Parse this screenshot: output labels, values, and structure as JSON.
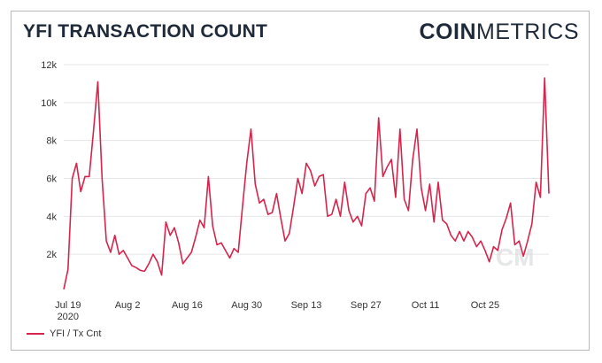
{
  "header": {
    "title": "YFI TRANSACTION COUNT",
    "brand_bold": "COIN",
    "brand_light": "METRICS"
  },
  "watermark": "CM",
  "colors": {
    "line": "#d6254d",
    "grid": "#e6e6e6",
    "text": "#1e2a3a"
  },
  "chart_data": {
    "type": "line",
    "title": "YFI TRANSACTION COUNT",
    "xlabel": "",
    "ylabel": "",
    "ylim": [
      0,
      12000
    ],
    "y_ticks": [
      "2k",
      "4k",
      "6k",
      "8k",
      "10k",
      "12k"
    ],
    "y_tick_values": [
      2000,
      4000,
      6000,
      8000,
      10000,
      12000
    ],
    "x_ticks": [
      {
        "day": 1,
        "label": "Jul 19",
        "sub": "2020"
      },
      {
        "day": 15,
        "label": "Aug 2",
        "sub": ""
      },
      {
        "day": 29,
        "label": "Aug 16",
        "sub": ""
      },
      {
        "day": 43,
        "label": "Aug 30",
        "sub": ""
      },
      {
        "day": 57,
        "label": "Sep 13",
        "sub": ""
      },
      {
        "day": 71,
        "label": "Sep 27",
        "sub": ""
      },
      {
        "day": 85,
        "label": "Oct 11",
        "sub": ""
      },
      {
        "day": 99,
        "label": "Oct 25",
        "sub": ""
      }
    ],
    "x_domain": [
      0,
      114
    ],
    "series": [
      {
        "name": "YFI / Tx Cnt",
        "days": [
          0,
          1,
          2,
          3,
          4,
          5,
          6,
          7,
          8,
          9,
          10,
          11,
          12,
          13,
          14,
          15,
          16,
          17,
          18,
          19,
          20,
          21,
          22,
          23,
          24,
          25,
          26,
          27,
          28,
          29,
          30,
          31,
          32,
          33,
          34,
          35,
          36,
          37,
          38,
          39,
          40,
          41,
          42,
          43,
          44,
          45,
          46,
          47,
          48,
          49,
          50,
          51,
          52,
          53,
          54,
          55,
          56,
          57,
          58,
          59,
          60,
          61,
          62,
          63,
          64,
          65,
          66,
          67,
          68,
          69,
          70,
          71,
          72,
          73,
          74,
          75,
          76,
          77,
          78,
          79,
          80,
          81,
          82,
          83,
          84,
          85,
          86,
          87,
          88,
          89,
          90,
          91,
          92,
          93,
          94,
          95,
          96,
          97,
          98,
          99,
          100,
          101,
          102,
          103,
          104,
          105,
          106,
          107,
          108,
          109,
          110,
          111,
          112,
          113,
          114
        ],
        "values": [
          150,
          1200,
          6000,
          6800,
          5300,
          6100,
          6100,
          8500,
          11100,
          6000,
          2700,
          2100,
          3000,
          2000,
          2200,
          1800,
          1400,
          1300,
          1150,
          1100,
          1500,
          2000,
          1600,
          900,
          3700,
          3000,
          3400,
          2600,
          1500,
          1800,
          2100,
          2900,
          3800,
          3400,
          6100,
          3500,
          2500,
          2600,
          2200,
          1800,
          2300,
          2100,
          4500,
          6800,
          8600,
          5700,
          4700,
          4900,
          4100,
          4200,
          5200,
          3900,
          2700,
          3100,
          4500,
          6000,
          5200,
          6800,
          6400,
          5600,
          6100,
          6200,
          4000,
          4100,
          4900,
          4000,
          5800,
          4300,
          3700,
          4000,
          3500,
          5200,
          5500,
          4800,
          9200,
          6100,
          6600,
          7000,
          5000,
          8600,
          4900,
          4300,
          7000,
          8600,
          5500,
          4300,
          5700,
          3700,
          5800,
          3800,
          3600,
          3000,
          2700,
          3200,
          2700,
          3200,
          2900,
          2400,
          2700,
          2200,
          1600,
          2400,
          2200,
          3300,
          3900,
          4700,
          2500,
          2700,
          1900,
          2700,
          3600,
          5800,
          5000,
          11300,
          5200
        ]
      }
    ]
  }
}
